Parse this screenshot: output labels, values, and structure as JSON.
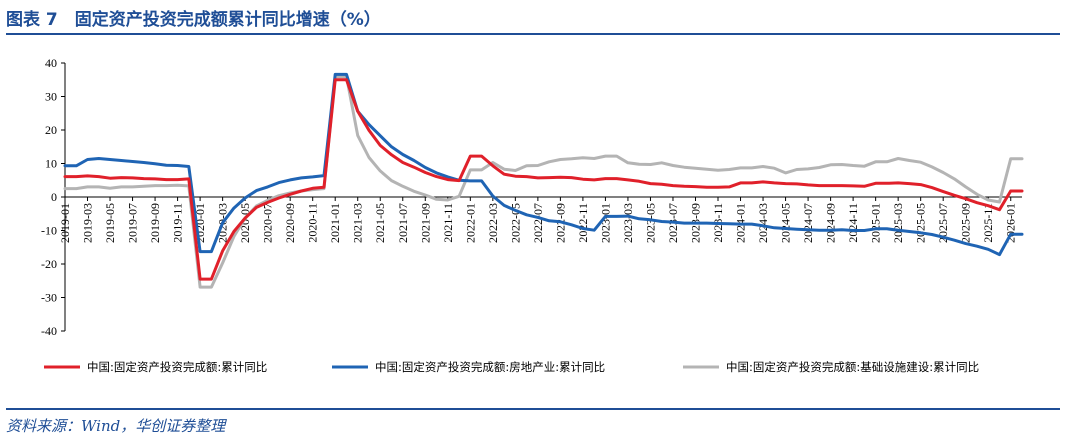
{
  "header": {
    "title": "图表 7　固定资产投资完成额累计同比增速（%）"
  },
  "footer": {
    "source": "资料来源：Wind，华创证券整理"
  },
  "chart_data": {
    "type": "line",
    "title": "图表 7　固定资产投资完成额累计同比增速（%）",
    "xlabel": "",
    "ylabel": "",
    "ylim": [
      -40,
      40
    ],
    "yticks": [
      40,
      30,
      20,
      10,
      0,
      -10,
      -20,
      -30,
      -40
    ],
    "x": [
      "2019-01",
      "2019-02",
      "2019-03",
      "2019-04",
      "2019-05",
      "2019-06",
      "2019-07",
      "2019-08",
      "2019-09",
      "2019-10",
      "2019-11",
      "2019-12",
      "2020-01",
      "2020-02",
      "2020-03",
      "2020-04",
      "2020-05",
      "2020-06",
      "2020-07",
      "2020-08",
      "2020-09",
      "2020-10",
      "2020-11",
      "2020-12",
      "2021-01",
      "2021-02",
      "2021-03",
      "2021-04",
      "2021-05",
      "2021-06",
      "2021-07",
      "2021-08",
      "2021-09",
      "2021-10",
      "2021-11",
      "2021-12",
      "2022-01",
      "2022-02",
      "2022-03",
      "2022-04",
      "2022-05",
      "2022-06",
      "2022-07",
      "2022-08",
      "2022-09",
      "2022-10",
      "2022-11",
      "2022-12",
      "2023-01",
      "2023-02",
      "2023-03",
      "2023-04",
      "2023-05",
      "2023-06",
      "2023-07",
      "2023-08",
      "2023-09",
      "2023-10",
      "2023-11",
      "2023-12",
      "2024-01",
      "2024-02",
      "2024-03",
      "2024-04",
      "2024-05",
      "2024-06",
      "2024-07",
      "2024-08",
      "2024-09",
      "2024-10",
      "2024-11",
      "2024-12",
      "2025-01",
      "2025-02",
      "2025-03",
      "2025-04",
      "2025-05",
      "2025-06",
      "2025-07",
      "2025-08",
      "2025-09",
      "2025-10",
      "2025-11",
      "2025-12",
      "2026-01",
      "2026-02"
    ],
    "xtick_labels": [
      "2019-01",
      "2019-03",
      "2019-05",
      "2019-07",
      "2019-09",
      "2019-11",
      "2020-01",
      "2020-03",
      "2020-05",
      "2020-07",
      "2020-09",
      "2020-11",
      "2021-01",
      "2021-03",
      "2021-05",
      "2021-07",
      "2021-09",
      "2021-11",
      "2022-01",
      "2022-03",
      "2022-05",
      "2022-07",
      "2022-09",
      "2022-11",
      "2023-01",
      "2023-03",
      "2023-05",
      "2023-07",
      "2023-09",
      "2023-11",
      "2024-01",
      "2024-03",
      "2024-05",
      "2024-07",
      "2024-09",
      "2024-11",
      "2025-01",
      "2025-03",
      "2025-05",
      "2025-07",
      "2025-09",
      "2025-11",
      "2026-01"
    ],
    "series": [
      {
        "name": "中国:固定资产投资完成额:累计同比",
        "color": "#e0202a",
        "values": [
          6.1,
          6.1,
          6.3,
          6.1,
          5.6,
          5.8,
          5.7,
          5.5,
          5.4,
          5.2,
          5.2,
          5.4,
          -24.5,
          -24.5,
          -16.1,
          -10.3,
          -6.3,
          -3.1,
          -1.6,
          -0.3,
          0.8,
          1.8,
          2.6,
          2.9,
          35.0,
          35.0,
          25.6,
          19.9,
          15.4,
          12.6,
          10.3,
          8.9,
          7.3,
          6.1,
          5.2,
          4.9,
          12.2,
          12.2,
          9.3,
          6.8,
          6.2,
          6.1,
          5.7,
          5.8,
          5.9,
          5.8,
          5.3,
          5.1,
          5.5,
          5.5,
          5.1,
          4.7,
          4.0,
          3.8,
          3.4,
          3.2,
          3.1,
          2.9,
          2.9,
          3.0,
          4.2,
          4.2,
          4.5,
          4.2,
          4.0,
          3.9,
          3.6,
          3.4,
          3.4,
          3.4,
          3.3,
          3.2,
          4.1,
          4.1,
          4.2,
          4.0,
          3.7,
          2.8,
          1.6,
          0.5,
          -0.5,
          -1.7,
          -2.6,
          -3.8,
          1.8,
          1.8
        ]
      },
      {
        "name": "中国:固定资产投资完成额:房地产业:累计同比",
        "color": "#1f64b4",
        "values": [
          9.3,
          9.3,
          11.2,
          11.5,
          11.2,
          10.9,
          10.6,
          10.3,
          9.9,
          9.5,
          9.4,
          9.1,
          -16.3,
          -16.3,
          -7.7,
          -3.3,
          -0.3,
          1.9,
          3.0,
          4.3,
          5.1,
          5.7,
          6.0,
          6.4,
          36.6,
          36.6,
          25.6,
          21.6,
          18.3,
          15.0,
          12.7,
          10.9,
          8.8,
          7.2,
          6.0,
          5.0,
          4.8,
          4.8,
          0.3,
          -2.5,
          -4.0,
          -5.3,
          -6.1,
          -7.1,
          -7.4,
          -8.3,
          -9.4,
          -9.9,
          -5.8,
          -5.8,
          -5.7,
          -6.5,
          -6.8,
          -7.3,
          -7.5,
          -7.8,
          -7.8,
          -7.8,
          -7.9,
          -8.0,
          -8.1,
          -8.1,
          -8.6,
          -9.2,
          -9.4,
          -9.6,
          -9.8,
          -9.9,
          -9.9,
          -9.8,
          -10.0,
          -10.0,
          -9.5,
          -9.5,
          -9.9,
          -10.3,
          -10.7,
          -11.2,
          -12.0,
          -12.9,
          -13.9,
          -14.7,
          -15.6,
          -17.2,
          -11.1,
          -11.1
        ]
      },
      {
        "name": "中国:固定资产投资完成额:基础设施建设:累计同比",
        "color": "#b4b4b4",
        "values": [
          2.5,
          2.5,
          3.0,
          3.0,
          2.6,
          3.0,
          3.0,
          3.2,
          3.4,
          3.4,
          3.5,
          3.3,
          -26.9,
          -26.9,
          -19.7,
          -11.8,
          -6.3,
          -2.7,
          -1.0,
          0.4,
          1.2,
          1.8,
          2.2,
          2.5,
          35.9,
          35.9,
          18.4,
          11.8,
          7.8,
          4.9,
          3.2,
          1.7,
          0.6,
          -0.7,
          -0.9,
          0.2,
          8.1,
          8.1,
          10.3,
          8.3,
          7.9,
          9.3,
          9.4,
          10.5,
          11.2,
          11.4,
          11.7,
          11.5,
          12.2,
          12.2,
          10.2,
          9.8,
          9.7,
          10.2,
          9.4,
          8.9,
          8.6,
          8.3,
          8.0,
          8.2,
          8.7,
          8.7,
          9.1,
          8.6,
          7.2,
          8.2,
          8.4,
          8.8,
          9.6,
          9.7,
          9.4,
          9.2,
          10.5,
          10.5,
          11.5,
          10.9,
          10.4,
          9.0,
          7.3,
          5.4,
          3.0,
          0.8,
          -0.9,
          -1.5,
          11.4,
          11.4
        ]
      }
    ],
    "legend": {
      "position": "bottom",
      "orientation": "horizontal"
    },
    "grid": false
  }
}
